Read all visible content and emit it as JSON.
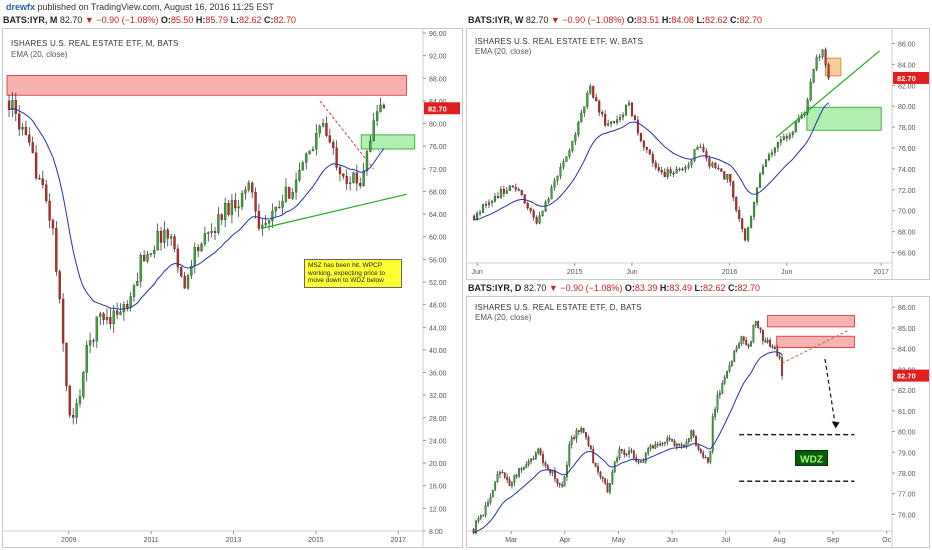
{
  "header": {
    "author": "drewfx",
    "published": "published on TradingView.com, August 16, 2016 11:25 EST"
  },
  "colors": {
    "up": "#33aa33",
    "down": "#cc2222",
    "ema": "#2233aa",
    "trend": "#22aa22",
    "price_tag": "#e02020"
  },
  "charts": [
    {
      "id": "monthly",
      "sym": "BATS:IYR, M",
      "price": "82.70",
      "change": "▼ −0.90 (−1.08%)",
      "o": "85.50",
      "h": "85.79",
      "l": "82.62",
      "c": "82.70",
      "name": "ISHARES U.S. REAL ESTATE ETF, M, BATS",
      "ema": "EMA (20, close)",
      "price_tag": "82.70",
      "note": "MSZ has been hit, WPCP working, expecting price to move down to WDZ below"
    },
    {
      "id": "weekly",
      "sym": "BATS:IYR, W",
      "price": "82.70",
      "change": "▼ −0.90 (−1.08%)",
      "o": "83.51",
      "h": "84.08",
      "l": "82.62",
      "c": "82.70",
      "name": "ISHARES U.S. REAL ESTATE ETF, W, BATS",
      "ema": "EMA (20, close)",
      "price_tag": "82.70"
    },
    {
      "id": "daily",
      "sym": "BATS:IYR, D",
      "price": "82.70",
      "change": "▼ −0.90 (−1.08%)",
      "o": "83.39",
      "h": "83.49",
      "l": "82.62",
      "c": "82.70",
      "name": "ISHARES U.S. REAL ESTATE ETF, D, BATS",
      "ema": "EMA (20, close)",
      "price_tag": "82.70",
      "label": "WDZ"
    }
  ],
  "chart_data": [
    {
      "type": "candlestick",
      "id": "monthly",
      "ylim": [
        8,
        96
      ],
      "yticks": [
        "96.00",
        "92.00",
        "88.00",
        "84.00",
        "80.00",
        "76.00",
        "72.00",
        "68.00",
        "64.00",
        "60.00",
        "56.00",
        "52.00",
        "48.00",
        "44.00",
        "40.00",
        "36.00",
        "32.00",
        "28.00",
        "24.00",
        "20.00",
        "16.00",
        "12.00",
        "8.00"
      ],
      "xticks": [
        "2009",
        "2011",
        "2013",
        "2015",
        "2017"
      ],
      "x_range": [
        2007.5,
        2017.6
      ],
      "zones": [
        {
          "kind": "supply",
          "x1": 2007.5,
          "x2": 2017.2,
          "y1": 88.5,
          "y2": 85.0
        },
        {
          "kind": "demand",
          "x1": 2016.1,
          "x2": 2017.4,
          "y1": 78.0,
          "y2": 75.5
        }
      ],
      "trendline": {
        "x1": 2013.7,
        "y1": 61.5,
        "x2": 2017.2,
        "y2": 67.5
      },
      "dashed": {
        "x1": 2015.1,
        "y1": 84.0,
        "x2": 2016.4,
        "y2": 72.0
      },
      "keypoints": [
        [
          2007.55,
          84
        ],
        [
          2007.8,
          80
        ],
        [
          2008.0,
          76
        ],
        [
          2008.3,
          70
        ],
        [
          2008.6,
          62
        ],
        [
          2008.9,
          38
        ],
        [
          2009.05,
          26
        ],
        [
          2009.2,
          30
        ],
        [
          2009.45,
          40
        ],
        [
          2009.75,
          46
        ],
        [
          2010.0,
          46
        ],
        [
          2010.5,
          48
        ],
        [
          2010.75,
          56
        ],
        [
          2011.0,
          58
        ],
        [
          2011.3,
          61
        ],
        [
          2011.6,
          58
        ],
        [
          2011.8,
          50
        ],
        [
          2012.0,
          57
        ],
        [
          2012.4,
          60
        ],
        [
          2012.8,
          65
        ],
        [
          2013.2,
          67
        ],
        [
          2013.4,
          70
        ],
        [
          2013.6,
          63
        ],
        [
          2013.8,
          62
        ],
        [
          2014.0,
          64
        ],
        [
          2014.5,
          70
        ],
        [
          2014.9,
          75
        ],
        [
          2015.1,
          81
        ],
        [
          2015.4,
          75
        ],
        [
          2015.7,
          71
        ],
        [
          2015.9,
          70
        ],
        [
          2016.05,
          69
        ],
        [
          2016.25,
          76
        ],
        [
          2016.5,
          82
        ],
        [
          2016.6,
          84.5
        ],
        [
          2016.65,
          82.7
        ]
      ]
    },
    {
      "type": "candlestick",
      "id": "weekly",
      "ylim": [
        65,
        87
      ],
      "yticks": [
        "86.00",
        "84.00",
        "82.00",
        "80.00",
        "78.00",
        "76.00",
        "74.00",
        "72.00",
        "70.00",
        "68.00",
        "66.00"
      ],
      "xticks": [
        "Jun",
        "2015",
        "Jun",
        "2016",
        "Jun",
        "2017"
      ],
      "x_range": [
        2014.33,
        2017.05
      ],
      "zones": [
        {
          "kind": "supply",
          "x1": 2016.62,
          "x2": 2016.72,
          "y1": 84.6,
          "y2": 82.9
        },
        {
          "kind": "demand",
          "x1": 2016.5,
          "x2": 2016.98,
          "y1": 79.9,
          "y2": 77.7
        }
      ],
      "trendline": {
        "x1": 2016.3,
        "y1": 77.0,
        "x2": 2016.97,
        "y2": 85.3
      },
      "keypoints": [
        [
          2014.35,
          69.5
        ],
        [
          2014.45,
          71
        ],
        [
          2014.6,
          72.5
        ],
        [
          2014.75,
          69
        ],
        [
          2014.85,
          72
        ],
        [
          2015.0,
          77
        ],
        [
          2015.1,
          82
        ],
        [
          2015.2,
          78
        ],
        [
          2015.35,
          80
        ],
        [
          2015.45,
          76
        ],
        [
          2015.55,
          73.5
        ],
        [
          2015.7,
          74
        ],
        [
          2015.8,
          76
        ],
        [
          2015.9,
          74
        ],
        [
          2016.0,
          73
        ],
        [
          2016.05,
          70
        ],
        [
          2016.1,
          67
        ],
        [
          2016.2,
          74
        ],
        [
          2016.3,
          76
        ],
        [
          2016.4,
          77.5
        ],
        [
          2016.5,
          80
        ],
        [
          2016.55,
          84
        ],
        [
          2016.6,
          85.3
        ],
        [
          2016.64,
          82.7
        ]
      ]
    },
    {
      "type": "candlestick",
      "id": "daily",
      "ylim": [
        75.2,
        86.3
      ],
      "yticks": [
        "86.00",
        "85.00",
        "84.00",
        "83.00",
        "82.00",
        "81.00",
        "80.00",
        "79.00",
        "78.00",
        "77.00",
        "76.00"
      ],
      "xticks": [
        "Mar",
        "Apr",
        "May",
        "Jun",
        "Jul",
        "Aug",
        "Sep",
        "Oc"
      ],
      "x_range": [
        2.25,
        10.1
      ],
      "zones": [
        {
          "kind": "supply",
          "x1": 7.78,
          "x2": 9.4,
          "y1": 85.6,
          "y2": 85.05
        },
        {
          "kind": "supply",
          "x1": 7.95,
          "x2": 9.4,
          "y1": 84.6,
          "y2": 84.05
        }
      ],
      "dashed_levels": [
        {
          "y": 79.85,
          "x1": 7.25,
          "x2": 9.4
        },
        {
          "y": 77.6,
          "x1": 7.25,
          "x2": 9.4
        }
      ],
      "dashed": {
        "x1": 8.05,
        "y1": 83.3,
        "x2": 9.3,
        "y2": 84.9
      },
      "arrow": {
        "x1": 8.85,
        "y1": 83.5,
        "x2": 9.05,
        "y2": 80.2
      },
      "wdz_label": {
        "x": 8.6,
        "y": 78.7
      },
      "keypoints": [
        [
          2.3,
          75.3
        ],
        [
          2.55,
          76.5
        ],
        [
          2.75,
          78
        ],
        [
          3.0,
          77.5
        ],
        [
          3.25,
          78.5
        ],
        [
          3.5,
          79
        ],
        [
          3.7,
          78.2
        ],
        [
          3.95,
          77.2
        ],
        [
          4.1,
          79.5
        ],
        [
          4.3,
          80.3
        ],
        [
          4.55,
          78.5
        ],
        [
          4.8,
          77.2
        ],
        [
          5.0,
          79
        ],
        [
          5.2,
          79
        ],
        [
          5.4,
          78.5
        ],
        [
          5.7,
          79.5
        ],
        [
          6.0,
          79.5
        ],
        [
          6.2,
          79.3
        ],
        [
          6.35,
          80
        ],
        [
          6.5,
          79
        ],
        [
          6.7,
          78.5
        ],
        [
          6.75,
          80.8
        ],
        [
          6.9,
          82
        ],
        [
          7.1,
          83.5
        ],
        [
          7.3,
          84.5
        ],
        [
          7.45,
          84
        ],
        [
          7.55,
          85.5
        ],
        [
          7.7,
          84.5
        ],
        [
          7.85,
          84.2
        ],
        [
          8.0,
          83.7
        ],
        [
          8.05,
          82.7
        ]
      ]
    }
  ]
}
